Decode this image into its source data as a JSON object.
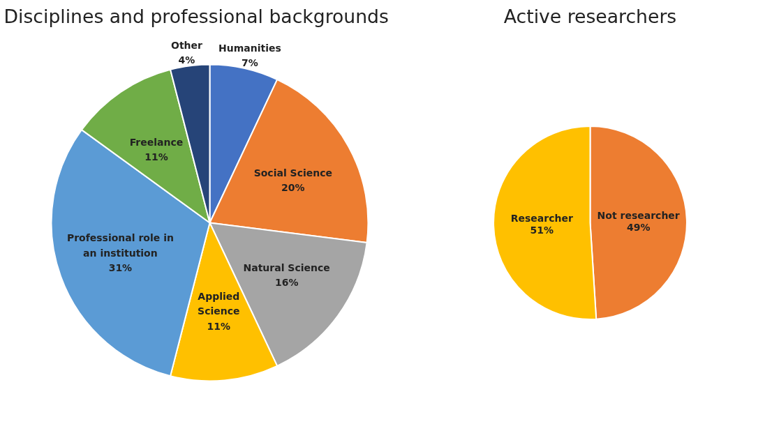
{
  "chart_data": [
    {
      "type": "pie",
      "title": "Disciplines and professional backgrounds",
      "categories": [
        "Humanities",
        "Social Science",
        "Natural Science",
        "Applied Science",
        "Professional role in an institution",
        "Freelance",
        "Other"
      ],
      "values": [
        7,
        20,
        16,
        11,
        31,
        11,
        4
      ],
      "colors": [
        "#4472c4",
        "#ed7d31",
        "#a5a5a5",
        "#ffc000",
        "#5b9bd5",
        "#70ad47",
        "#264478"
      ],
      "value_labels": [
        "7%",
        "20%",
        "16%",
        "11%",
        "31%",
        "11%",
        "4%"
      ]
    },
    {
      "type": "pie",
      "title": "Active researchers",
      "categories": [
        "Not researcher",
        "Researcher"
      ],
      "values": [
        49,
        51
      ],
      "colors": [
        "#ed7d31",
        "#ffc000"
      ],
      "value_labels": [
        "49%",
        "51%"
      ]
    }
  ]
}
